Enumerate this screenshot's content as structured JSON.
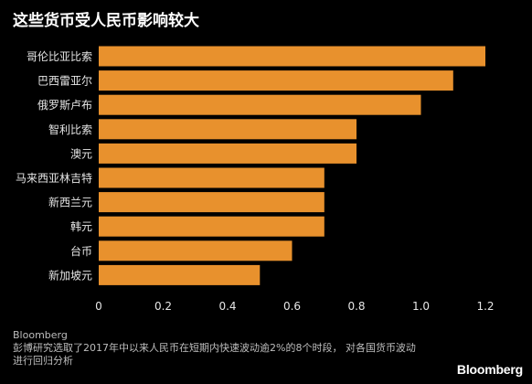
{
  "title": "这些货币受人民币影响较大",
  "chart_data": {
    "type": "bar",
    "orientation": "horizontal",
    "categories": [
      "哥伦比亚比索",
      "巴西雷亚尔",
      "俄罗斯卢布",
      "智利比索",
      "澳元",
      "马来西亚林吉特",
      "新西兰元",
      "韩元",
      "台币",
      "新加坡元"
    ],
    "values": [
      1.2,
      1.1,
      1.0,
      0.8,
      0.8,
      0.7,
      0.7,
      0.7,
      0.6,
      0.5
    ],
    "xlim": [
      0,
      1.2
    ],
    "xticks": [
      "0",
      "0.2",
      "0.4",
      "0.6",
      "0.8",
      "1.0",
      "1.2"
    ],
    "bar_color": "#E8912D",
    "grid": false
  },
  "footer": {
    "source": "Bloomberg",
    "note_line1": "彭博研究选取了2017年中以来人民币在短期内快速波动逾2%的8个时段， 对各国货币波动",
    "note_line2": "进行回归分析"
  },
  "brand": "Bloomberg",
  "colors": {
    "background": "#000000",
    "bar": "#E8912D",
    "text": "#FFFFFF",
    "muted_text": "#BDBDBD"
  }
}
